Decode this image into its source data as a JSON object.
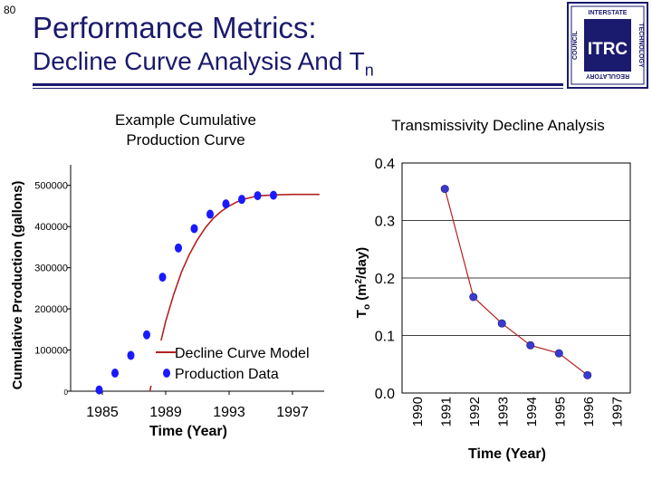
{
  "slide": {
    "number": "80",
    "title_line1": "Performance Metrics:",
    "title_line2": "Decline Curve Analysis And T",
    "title_line2_sub": "n"
  },
  "logo": {
    "center_text": "ITRC",
    "ring_top": "INTERSTATE",
    "ring_right": "TECHNOLOGY",
    "ring_bottom": "REGULATORY",
    "ring_left": "COUNCIL"
  },
  "colors": {
    "title": "#1a1a6e",
    "marker": "#1a1aff",
    "model_line": "#b22222",
    "trans_line": "#b22222"
  },
  "chart_data": [
    {
      "type": "scatter",
      "title_line1": "Example Cumulative",
      "title_line2": "Production Curve",
      "xlabel": "Time (Year)",
      "ylabel": "Cumulative Production (gallons)",
      "xlim": [
        1983,
        1999
      ],
      "ylim": [
        0,
        550000
      ],
      "x_ticks": [
        1985,
        1989,
        1993,
        1997
      ],
      "x_tick_labels": [
        "1985",
        "1989",
        "1993",
        "1997"
      ],
      "y_ticks": [
        0,
        100000,
        200000,
        300000,
        400000,
        500000
      ],
      "y_tick_labels": [
        "0",
        "100000",
        "200000",
        "300000",
        "400000",
        "500000"
      ],
      "legend": [
        "Decline Curve Model",
        "Production Data"
      ],
      "legend_position": "bottom-right",
      "series": [
        {
          "name": "Production Data",
          "x": [
            1984.8,
            1985.8,
            1986.8,
            1987.8,
            1988.8,
            1989.8,
            1990.8,
            1991.8,
            1992.8,
            1993.8,
            1994.8,
            1995.8
          ],
          "values": [
            3000,
            44000,
            87000,
            137000,
            277000,
            348000,
            395000,
            430000,
            455000,
            466000,
            475000,
            476000
          ]
        },
        {
          "name": "Decline Curve Model",
          "x": [
            1988.0,
            1988.5,
            1989.0,
            1989.5,
            1990.0,
            1990.5,
            1991.0,
            1991.5,
            1992.0,
            1992.5,
            1993.0,
            1993.5,
            1994.0,
            1994.5,
            1995.0,
            1996.0,
            1997.0,
            1998.0,
            1998.7
          ],
          "values": [
            0,
            90000,
            170000,
            235000,
            290000,
            333000,
            368000,
            397000,
            420000,
            437000,
            450000,
            460000,
            467000,
            472000,
            475000,
            477000,
            478000,
            478000,
            478000
          ]
        }
      ]
    },
    {
      "type": "line",
      "title": "Transmissivity Decline Analysis",
      "xlabel": "Time (Year)",
      "ylabel_main": "T",
      "ylabel_sub": "o",
      "ylabel_rest": " (m",
      "ylabel_sup": "2",
      "ylabel_end": "/day)",
      "categories": [
        "1990",
        "1991",
        "1992",
        "1993",
        "1994",
        "1995",
        "1996",
        "1997"
      ],
      "ylim": [
        0.0,
        0.4
      ],
      "y_ticks": [
        0.0,
        0.1,
        0.2,
        0.3,
        0.4
      ],
      "y_tick_labels": [
        "0.0",
        "0.1",
        "0.2",
        "0.3",
        "0.4"
      ],
      "series": [
        {
          "name": "Transmissivity",
          "x": [
            1991,
            1992,
            1993,
            1994,
            1995,
            1996
          ],
          "values": [
            0.355,
            0.167,
            0.121,
            0.083,
            0.069,
            0.031
          ]
        }
      ]
    }
  ]
}
